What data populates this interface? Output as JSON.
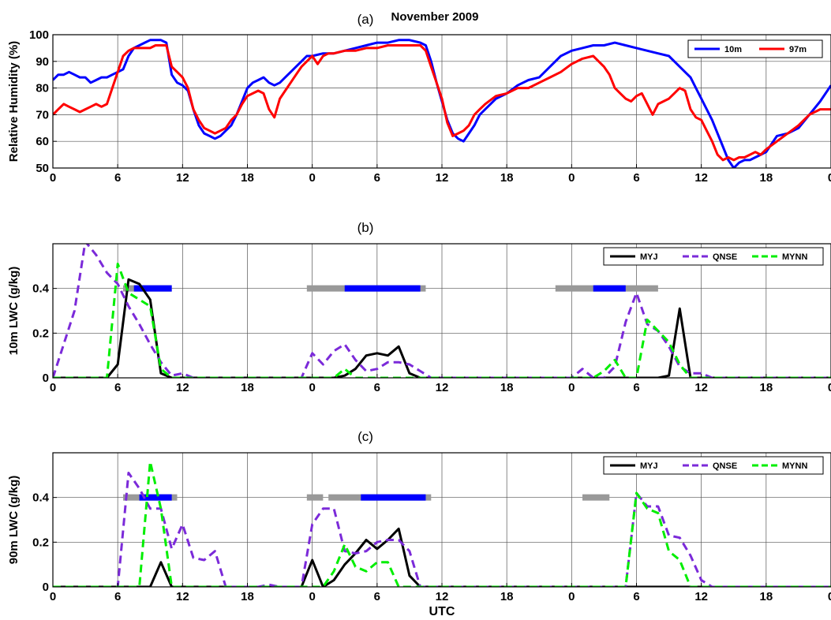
{
  "figure_title": "November 2009",
  "chart_data": [
    {
      "panel": "(a)",
      "type": "line",
      "title": "November 2009",
      "ylabel": "Relative Humidity (%)",
      "xlabel": "",
      "xlim": [
        0,
        72
      ],
      "ylim": [
        50,
        100
      ],
      "yticks": [
        50,
        60,
        70,
        80,
        90,
        100
      ],
      "xticks": [
        0,
        6,
        12,
        18,
        24,
        30,
        36,
        42,
        48,
        54,
        60,
        66,
        72
      ],
      "xtick_labels": [
        "0",
        "6",
        "12",
        "18",
        "0",
        "6",
        "12",
        "18",
        "0",
        "6",
        "12",
        "18",
        "0"
      ],
      "grid": true,
      "legend_placement": "top-right",
      "series": [
        {
          "name": "10m",
          "color": "#0000ff",
          "x": [
            0,
            0.5,
            1,
            1.5,
            2,
            2.5,
            3,
            3.5,
            4,
            4.5,
            5,
            5.5,
            6,
            6.5,
            7,
            7.5,
            8,
            8.5,
            9,
            9.5,
            10,
            10.5,
            11,
            11.5,
            12,
            12.5,
            13,
            13.5,
            14,
            14.5,
            15,
            15.5,
            16,
            16.5,
            17,
            17.5,
            18,
            18.5,
            19,
            19.5,
            20,
            20.5,
            21,
            21.5,
            22,
            22.5,
            23,
            23.5,
            24,
            25,
            26,
            27,
            28,
            29,
            30,
            31,
            32,
            33,
            34,
            34.5,
            35,
            35.5,
            36,
            36.5,
            37,
            37.5,
            38,
            38.5,
            39,
            39.5,
            40,
            41,
            42,
            43,
            44,
            45,
            46,
            47,
            48,
            49,
            50,
            51,
            52,
            53,
            54,
            55,
            56,
            57,
            58,
            58.5,
            59,
            59.5,
            60,
            60.5,
            61,
            61.5,
            62,
            62.5,
            63,
            63.5,
            64,
            64.5,
            65,
            65.5,
            66,
            67,
            68,
            69,
            70,
            71,
            72
          ],
          "y": [
            83,
            85,
            85,
            86,
            85,
            84,
            84,
            82,
            83,
            84,
            84,
            85,
            86,
            87,
            92,
            95,
            96,
            97,
            98,
            98,
            98,
            97,
            85,
            82,
            81,
            79,
            72,
            66,
            63,
            62,
            61,
            62,
            64,
            66,
            70,
            75,
            80,
            82,
            83,
            84,
            82,
            81,
            82,
            84,
            86,
            88,
            90,
            92,
            92,
            93,
            93,
            94,
            95,
            96,
            97,
            97,
            98,
            98,
            97,
            96,
            90,
            82,
            75,
            68,
            63,
            61,
            60,
            63,
            66,
            70,
            72,
            76,
            78,
            81,
            83,
            84,
            88,
            92,
            94,
            95,
            96,
            96,
            97,
            96,
            95,
            94,
            93,
            92,
            88,
            86,
            84,
            80,
            76,
            72,
            68,
            63,
            58,
            53,
            50,
            52,
            53,
            53,
            54,
            55,
            56,
            62,
            63,
            65,
            70,
            75,
            81
          ]
        },
        {
          "name": "97m",
          "color": "#ff0000",
          "x": [
            0,
            0.5,
            1,
            1.5,
            2,
            2.5,
            3,
            3.5,
            4,
            4.5,
            5,
            5.5,
            6,
            6.5,
            7,
            7.5,
            8,
            8.5,
            9,
            9.5,
            10,
            10.5,
            11,
            11.5,
            12,
            12.5,
            13,
            13.5,
            14,
            14.5,
            15,
            15.5,
            16,
            16.5,
            17,
            17.5,
            18,
            18.5,
            19,
            19.5,
            20,
            20.5,
            21,
            21.5,
            22,
            22.5,
            23,
            23.5,
            24,
            24.5,
            25,
            25.5,
            26,
            27,
            28,
            29,
            30,
            31,
            32,
            33,
            34,
            34.5,
            35,
            35.5,
            36,
            36.5,
            37,
            37.5,
            38,
            38.5,
            39,
            39.5,
            40,
            41,
            42,
            43,
            44,
            45,
            46,
            47,
            48,
            49,
            50,
            50.5,
            51,
            51.5,
            52,
            52.5,
            53,
            53.5,
            54,
            54.5,
            55,
            55.5,
            56,
            56.5,
            57,
            57.5,
            58,
            58.5,
            59,
            59.5,
            60,
            60.5,
            61,
            61.5,
            62,
            62.5,
            63,
            63.5,
            64,
            64.5,
            65,
            65.5,
            66,
            67,
            68,
            69,
            70,
            71,
            72
          ],
          "y": [
            70,
            72,
            74,
            73,
            72,
            71,
            72,
            73,
            74,
            73,
            74,
            80,
            86,
            92,
            94,
            95,
            95,
            95,
            95,
            96,
            96,
            96,
            88,
            86,
            84,
            80,
            72,
            68,
            65,
            64,
            63,
            64,
            65,
            68,
            70,
            74,
            77,
            78,
            79,
            78,
            72,
            69,
            76,
            79,
            82,
            85,
            88,
            90,
            92,
            89,
            92,
            93,
            93,
            94,
            94,
            95,
            95,
            96,
            96,
            96,
            96,
            94,
            88,
            82,
            76,
            67,
            62,
            63,
            64,
            66,
            70,
            72,
            74,
            77,
            78,
            80,
            80,
            82,
            84,
            86,
            89,
            91,
            92,
            90,
            88,
            85,
            80,
            78,
            76,
            75,
            77,
            78,
            74,
            70,
            74,
            75,
            76,
            78,
            80,
            79,
            72,
            69,
            68,
            64,
            60,
            55,
            53,
            54,
            53,
            54,
            54,
            55,
            56,
            55,
            57,
            60,
            63,
            66,
            70,
            72,
            72
          ]
        }
      ]
    },
    {
      "panel": "(b)",
      "type": "line",
      "title": "",
      "ylabel": "10m LWC (g/kg)",
      "xlabel": "",
      "xlim": [
        0,
        72
      ],
      "ylim": [
        0,
        0.6
      ],
      "yticks": [
        0,
        0.2,
        0.4
      ],
      "ytick_labels": [
        "0",
        "0.2",
        "0.4"
      ],
      "xticks": [
        0,
        6,
        12,
        18,
        24,
        30,
        36,
        42,
        48,
        54,
        60,
        66,
        72
      ],
      "xtick_labels": [
        "0",
        "6",
        "12",
        "18",
        "0",
        "6",
        "12",
        "18",
        "0",
        "6",
        "12",
        "18",
        "0"
      ],
      "grid": true,
      "legend_placement": "top-right",
      "series": [
        {
          "name": "MYJ",
          "color": "#000000",
          "dash": "solid",
          "x": [
            0,
            5,
            6,
            7,
            8,
            9,
            10,
            11,
            12,
            24,
            25,
            26,
            27,
            28,
            29,
            30,
            31,
            32,
            33,
            34,
            35,
            36,
            48,
            53,
            54,
            55,
            56,
            57,
            58,
            59,
            60,
            72
          ],
          "y": [
            0,
            0,
            0.06,
            0.44,
            0.42,
            0.35,
            0.02,
            0,
            0,
            0,
            0,
            0,
            0.01,
            0.04,
            0.1,
            0.11,
            0.1,
            0.14,
            0.02,
            0,
            0,
            0,
            0,
            0,
            0,
            0,
            0,
            0.01,
            0.31,
            0,
            0,
            0
          ]
        },
        {
          "name": "QNSE",
          "color": "#7b2ad9",
          "dash": "dashed",
          "x": [
            0,
            1,
            2,
            3,
            4,
            5,
            6,
            7,
            8,
            9,
            10,
            11,
            12,
            13,
            23,
            24,
            25,
            26,
            27,
            28,
            29,
            30,
            31,
            32,
            33,
            34,
            35,
            48,
            49,
            50,
            51,
            52,
            53,
            54,
            55,
            56,
            57,
            58,
            59,
            60,
            61,
            72
          ],
          "y": [
            0,
            0.15,
            0.3,
            0.61,
            0.55,
            0.47,
            0.42,
            0.32,
            0.24,
            0.15,
            0.07,
            0.01,
            0.02,
            0,
            0,
            0.11,
            0.06,
            0.12,
            0.15,
            0.08,
            0.03,
            0.04,
            0.07,
            0.07,
            0.06,
            0.03,
            0,
            0,
            0.04,
            0,
            0,
            0.05,
            0.25,
            0.38,
            0.24,
            0.21,
            0.14,
            0.05,
            0.02,
            0.02,
            0,
            0
          ]
        },
        {
          "name": "MYNN",
          "color": "#00ee00",
          "dash": "dashed",
          "x": [
            0,
            5,
            6,
            7,
            8,
            9,
            10,
            11,
            12,
            26,
            27,
            28,
            29,
            30,
            31,
            50,
            51,
            52,
            53,
            54,
            55,
            56,
            57,
            58,
            59,
            72
          ],
          "y": [
            0,
            0,
            0.51,
            0.38,
            0.35,
            0.32,
            0.04,
            0,
            0,
            0,
            0.04,
            0,
            0,
            0,
            0,
            0,
            0.03,
            0.08,
            0,
            0,
            0.26,
            0.21,
            0.16,
            0.06,
            0,
            0
          ]
        }
      ],
      "observation_bars": [
        {
          "color": "#999999",
          "x": [
            6.5,
            11
          ]
        },
        {
          "color": "#0000ff",
          "x": [
            7.5,
            11
          ]
        },
        {
          "color": "#999999",
          "x": [
            23.5,
            34.5
          ]
        },
        {
          "color": "#0000ff",
          "x": [
            27,
            34
          ]
        },
        {
          "color": "#999999",
          "x": [
            46.5,
            56
          ]
        },
        {
          "color": "#0000ff",
          "x": [
            50,
            53
          ]
        }
      ],
      "observation_level": 0.4
    },
    {
      "panel": "(c)",
      "type": "line",
      "title": "",
      "ylabel": "90m LWC (g/kg)",
      "xlabel": "UTC",
      "xlim": [
        0,
        72
      ],
      "ylim": [
        0,
        0.6
      ],
      "yticks": [
        0,
        0.2,
        0.4
      ],
      "ytick_labels": [
        "0",
        "0.2",
        "0.4"
      ],
      "xticks": [
        0,
        6,
        12,
        18,
        24,
        30,
        36,
        42,
        48,
        54,
        60,
        66,
        72
      ],
      "xtick_labels": [
        "0",
        "6",
        "12",
        "18",
        "0",
        "6",
        "12",
        "18",
        "0",
        "6",
        "12",
        "18",
        "0"
      ],
      "grid": true,
      "legend_placement": "top-right",
      "series": [
        {
          "name": "MYJ",
          "color": "#000000",
          "dash": "solid",
          "x": [
            0,
            9,
            10,
            11,
            12,
            23,
            24,
            25,
            26,
            27,
            28,
            29,
            30,
            31,
            32,
            33,
            34,
            35,
            36,
            72
          ],
          "y": [
            0,
            0,
            0.11,
            0,
            0,
            0,
            0.12,
            0,
            0.03,
            0.1,
            0.15,
            0.21,
            0.17,
            0.21,
            0.26,
            0.05,
            0,
            0,
            0,
            0
          ]
        },
        {
          "name": "QNSE",
          "color": "#7b2ad9",
          "dash": "dashed",
          "x": [
            0,
            6,
            7,
            8,
            9,
            10,
            11,
            12,
            13,
            14,
            15,
            16,
            17,
            19,
            20,
            21,
            23,
            24,
            25,
            26,
            27,
            28,
            29,
            30,
            31,
            32,
            33,
            34,
            35,
            36,
            53,
            54,
            55,
            56,
            57,
            58,
            59,
            60,
            61,
            62,
            72
          ],
          "y": [
            0,
            0,
            0.51,
            0.44,
            0.35,
            0.35,
            0.17,
            0.28,
            0.13,
            0.12,
            0.16,
            0,
            0,
            0,
            0.01,
            0,
            0,
            0.28,
            0.35,
            0.35,
            0.16,
            0.15,
            0.16,
            0.2,
            0.21,
            0.21,
            0.16,
            0,
            0,
            0,
            0,
            0.42,
            0.36,
            0.36,
            0.23,
            0.22,
            0.14,
            0.03,
            0,
            0,
            0
          ]
        },
        {
          "name": "MYNN",
          "color": "#00ee00",
          "dash": "dashed",
          "x": [
            0,
            8,
            9,
            10,
            11,
            12,
            25,
            26,
            27,
            28,
            29,
            30,
            31,
            32,
            33,
            34,
            52,
            53,
            54,
            55,
            56,
            57,
            58,
            59,
            60,
            72
          ],
          "y": [
            0,
            0,
            0.56,
            0.35,
            0,
            0,
            0,
            0.07,
            0.19,
            0.09,
            0.07,
            0.11,
            0.11,
            0,
            0,
            0,
            0,
            0,
            0.42,
            0.35,
            0.33,
            0.16,
            0.12,
            0,
            0,
            0
          ]
        }
      ],
      "observation_bars": [
        {
          "color": "#999999",
          "x": [
            6.5,
            11.5
          ]
        },
        {
          "color": "#0000ff",
          "x": [
            8,
            11
          ]
        },
        {
          "color": "#999999",
          "x": [
            23.5,
            25
          ]
        },
        {
          "color": "#999999",
          "x": [
            25.5,
            35
          ]
        },
        {
          "color": "#0000ff",
          "x": [
            28.5,
            34.5
          ]
        },
        {
          "color": "#999999",
          "x": [
            49,
            51.5
          ]
        }
      ],
      "observation_level": 0.4
    }
  ]
}
